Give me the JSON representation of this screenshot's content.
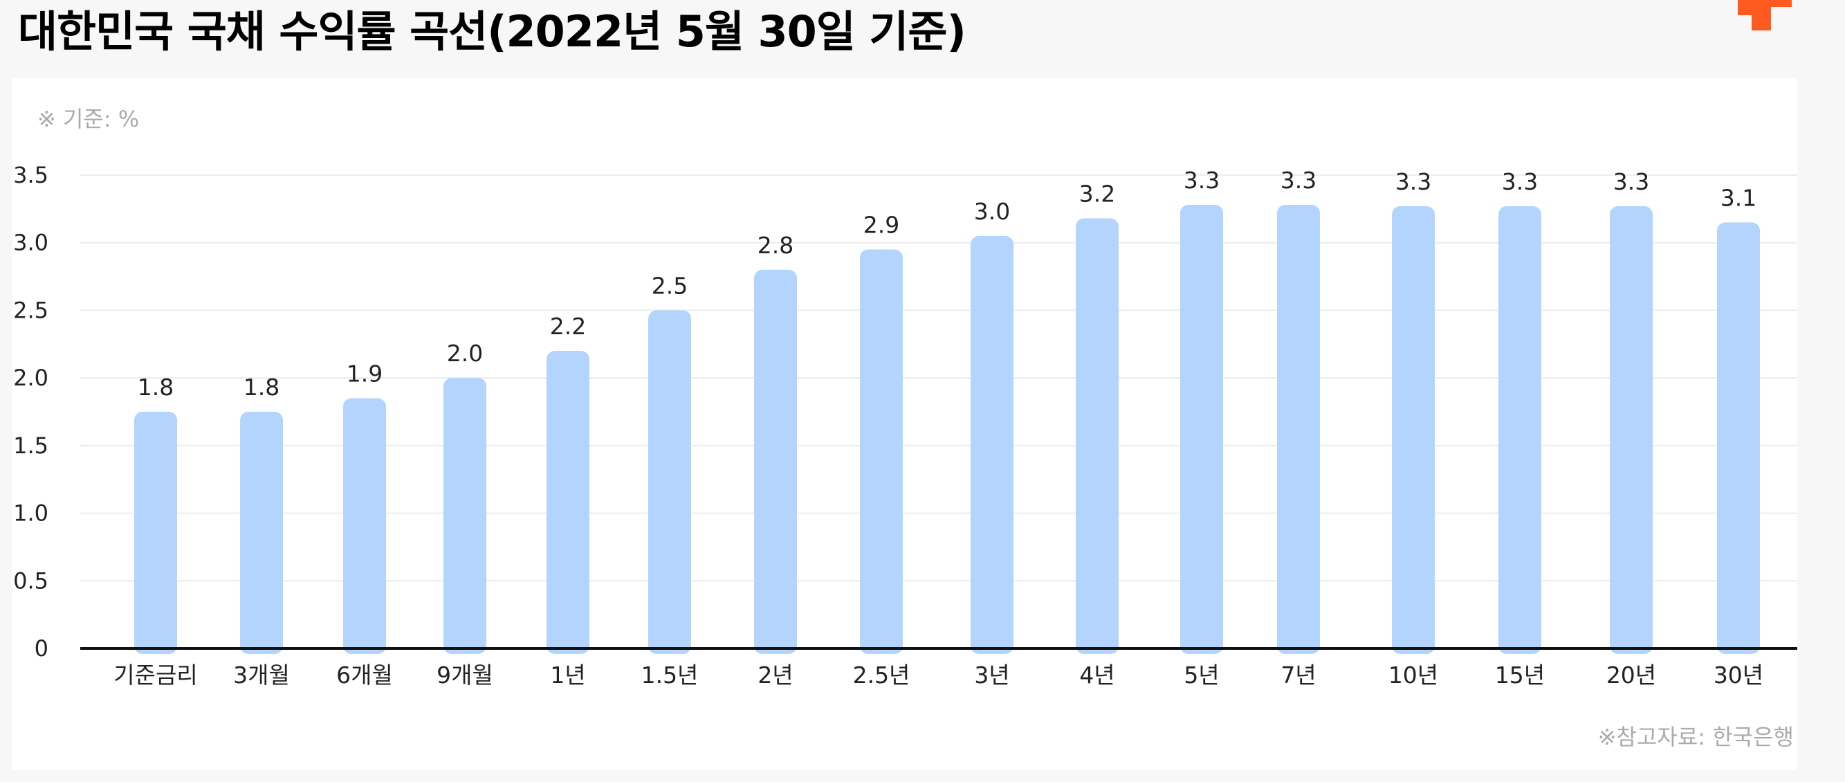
{
  "page": {
    "title": "대한민국 국채 수익률 곡선(2022년 5월 30일 기준)",
    "logo_icon": "brand-logo-icon",
    "logo_color": "#ff5a1f"
  },
  "chart_data": {
    "type": "bar",
    "title": "대한민국 국채 수익률 곡선(2022년 5월 30일 기준)",
    "unit_note": "※ 기준: %",
    "source_note": "※참고자료: 한국은행",
    "categories": [
      "기준금리",
      "3개월",
      "6개월",
      "9개월",
      "1년",
      "1.5년",
      "2년",
      "2.5년",
      "3년",
      "4년",
      "5년",
      "7년",
      "10년",
      "15년",
      "20년",
      "30년"
    ],
    "values": [
      1.75,
      1.75,
      1.85,
      2.0,
      2.2,
      2.5,
      2.8,
      2.95,
      3.05,
      3.18,
      3.28,
      3.28,
      3.27,
      3.27,
      3.27,
      3.15
    ],
    "value_labels": [
      "1.8",
      "1.8",
      "1.9",
      "2.0",
      "2.2",
      "2.5",
      "2.8",
      "2.9",
      "3.0",
      "3.2",
      "3.3",
      "3.3",
      "3.3",
      "3.3",
      "3.3",
      "3.1"
    ],
    "y_ticks": [
      0,
      0.5,
      1.0,
      1.5,
      2.0,
      2.5,
      3.0,
      3.5
    ],
    "y_tick_labels": [
      "0",
      "0.5",
      "1.0",
      "1.5",
      "2.0",
      "2.5",
      "3.0",
      "3.5"
    ],
    "ylim": [
      0,
      3.5
    ],
    "xlabel": "",
    "ylabel": "",
    "grid": true,
    "legend": false,
    "bar_color": "#b3d4fc",
    "grid_color": "#ececec",
    "axis_color": "#111111"
  }
}
